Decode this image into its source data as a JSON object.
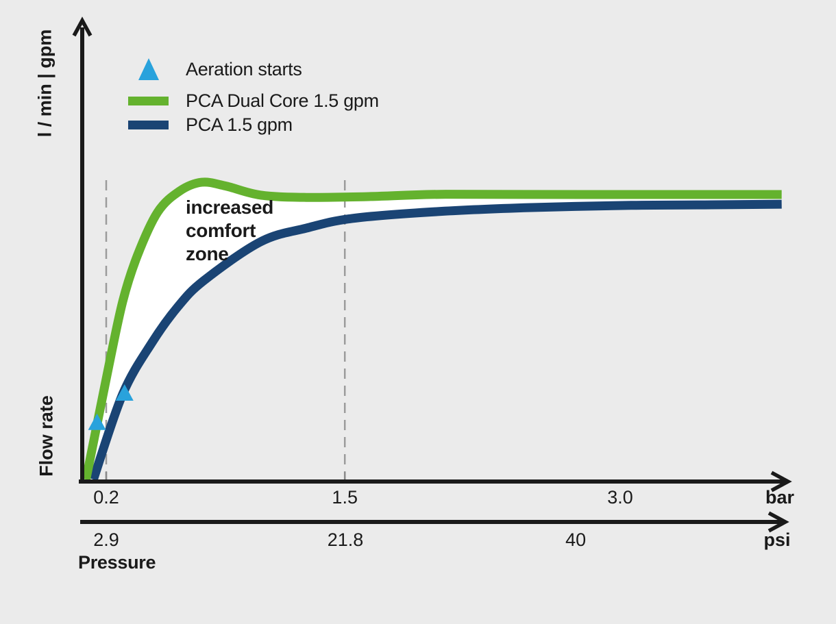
{
  "colors": {
    "background": "#ebebeb",
    "green": "#64b22e",
    "navy": "#1a4474",
    "light_blue": "#29a2dc",
    "axis": "#1a1a1a",
    "text": "#1a1a1a",
    "guide": "#9b9b9b",
    "tick": "#8a8a8a",
    "fill_between": "#ffffff"
  },
  "axes": {
    "flow_unit_label": "l / min | gpm",
    "flow_label": "Flow rate",
    "pressure_label": "Pressure",
    "bar": {
      "unit": "bar",
      "ticks": [
        {
          "label": "0.2",
          "bar": 0.2
        },
        {
          "label": "1.5",
          "bar": 1.5
        },
        {
          "label": "3.0",
          "bar": 3.0
        }
      ]
    },
    "psi": {
      "unit": "psi",
      "ticks": [
        {
          "label": "2.9",
          "psi": 2.9
        },
        {
          "label": "21.8",
          "psi": 21.8
        },
        {
          "label": "40",
          "psi": 40
        }
      ]
    }
  },
  "legend": {
    "items": [
      {
        "marker": "aeration-triangle",
        "label": "Aeration starts"
      },
      {
        "marker": "green-line",
        "label": "PCA Dual Core 1.5 gpm"
      },
      {
        "marker": "navy-line",
        "label": "PCA 1.5 gpm"
      }
    ]
  },
  "annotation": {
    "text": "increased\ncomfort\nzone"
  },
  "chart_data": {
    "type": "line",
    "title": "",
    "xlabel": "Pressure",
    "ylabel": "Flow rate (l / min | gpm)",
    "x_axis_units": [
      "bar",
      "psi"
    ],
    "psi_per_bar": 14.5038,
    "x_ticks_bar": [
      0.2,
      1.5,
      3.0
    ],
    "x_ticks_psi": [
      2.9,
      21.8,
      40
    ],
    "x_range_bar": [
      0,
      3.95
    ],
    "y_axis_scale": "relative flow, 1.0 = steady-state flow of PCA Dual Core 1.5 gpm (no numeric y ticks shown)",
    "dashed_guides_bar": [
      0.2,
      1.5
    ],
    "tick_marks_bar": [
      0.2,
      1.5
    ],
    "series": [
      {
        "name": "PCA Dual Core 1.5 gpm",
        "color": "#64b22e",
        "points": [
          [
            0.09,
            0
          ],
          [
            0.21,
            0.385
          ],
          [
            0.29,
            0.625
          ],
          [
            0.37,
            0.786
          ],
          [
            0.48,
            0.938
          ],
          [
            0.6,
            1.012
          ],
          [
            0.72,
            1.043
          ],
          [
            0.85,
            1.03
          ],
          [
            1.04,
            0.998
          ],
          [
            1.29,
            0.99
          ],
          [
            1.64,
            0.993
          ],
          [
            2.05,
            1.001
          ],
          [
            2.8,
            1.0
          ],
          [
            3.88,
            1.0
          ]
        ]
      },
      {
        "name": "PCA 1.5 gpm",
        "color": "#1a4474",
        "points": [
          [
            0.13,
            0
          ],
          [
            0.29,
            0.3
          ],
          [
            0.45,
            0.481
          ],
          [
            0.59,
            0.606
          ],
          [
            0.73,
            0.697
          ],
          [
            1.04,
            0.834
          ],
          [
            1.29,
            0.882
          ],
          [
            1.54,
            0.916
          ],
          [
            2.0,
            0.94
          ],
          [
            2.5,
            0.954
          ],
          [
            3.06,
            0.962
          ],
          [
            3.5,
            0.964
          ],
          [
            3.88,
            0.966
          ]
        ]
      }
    ],
    "aeration_markers": [
      {
        "series": "PCA Dual Core 1.5 gpm",
        "pressure_bar": 0.15,
        "flow": 0.2
      },
      {
        "series": "PCA 1.5 gpm",
        "pressure_bar": 0.3,
        "flow": 0.303
      }
    ],
    "fill_between": {
      "between": [
        "PCA Dual Core 1.5 gpm",
        "PCA 1.5 gpm"
      ],
      "label": "increased comfort zone",
      "color": "#ffffff"
    }
  }
}
